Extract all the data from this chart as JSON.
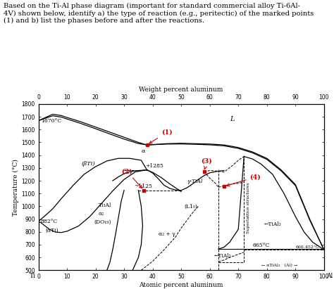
{
  "top_xlabel": "Weight percent aluminum",
  "bottom_xlabel": "Atomic percent aluminum",
  "ylabel": "Temperature (°C)",
  "xlim": [
    0,
    100
  ],
  "ylim": [
    500,
    1800
  ],
  "yticks": [
    500,
    600,
    700,
    800,
    900,
    1000,
    1100,
    1200,
    1300,
    1400,
    1500,
    1600,
    1700,
    1800
  ],
  "xticks": [
    0,
    10,
    20,
    30,
    40,
    50,
    60,
    70,
    80,
    90,
    100
  ],
  "line_color": "#000000",
  "label_color": "#cc0000"
}
